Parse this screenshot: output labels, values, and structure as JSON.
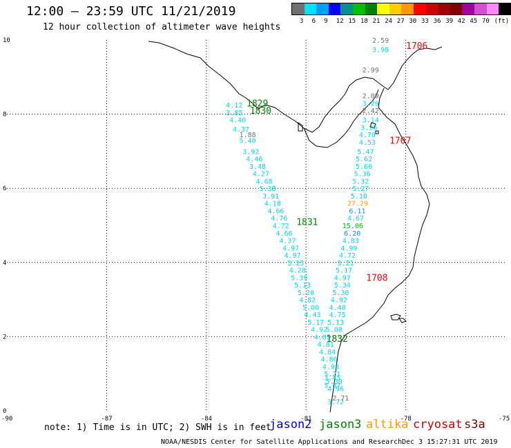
{
  "header": {
    "title": "12:00 – 23:59 UTC 11/21/2019",
    "subtitle": "12 hour collection of altimeter wave heights"
  },
  "legend": {
    "unit": "(ft)",
    "colors": [
      "#707070",
      "#00e0ff",
      "#00a0ff",
      "#0000ff",
      "#009090",
      "#00c000",
      "#008000",
      "#ffff00",
      "#ffcc00",
      "#ff9900",
      "#ff0000",
      "#d00000",
      "#a00000",
      "#800000",
      "#a000a0",
      "#d050d0",
      "#ff88ff",
      "#000000"
    ],
    "labels": [
      "3",
      "6",
      "9",
      "12",
      "15",
      "18",
      "21",
      "24",
      "27",
      "30",
      "33",
      "36",
      "39",
      "42",
      "45",
      "70"
    ]
  },
  "axes": {
    "x_ticks": [
      "-90",
      "-87",
      "-84",
      "-81",
      "-78",
      "-75"
    ],
    "y_ticks": [
      "10",
      "8",
      "6",
      "4",
      "2",
      "0"
    ],
    "x_range": [
      -90,
      -75
    ],
    "y_range": [
      0,
      10
    ]
  },
  "pass_labels": [
    {
      "text": "1706",
      "color": "#ff0000",
      "lon": -77.7,
      "lat": 9.85
    },
    {
      "text": "1829",
      "color": "#008000",
      "lon": -82.5,
      "lat": 8.3
    },
    {
      "text": "1830",
      "color": "#008000",
      "lon": -82.4,
      "lat": 8.1
    },
    {
      "text": "1707",
      "color": "#ff0000",
      "lon": -78.2,
      "lat": 7.3
    },
    {
      "text": "1831",
      "color": "#008000",
      "lon": -81.0,
      "lat": 5.1
    },
    {
      "text": "1708",
      "color": "#ff0000",
      "lon": -78.9,
      "lat": 3.6
    },
    {
      "text": "1832",
      "color": "#008000",
      "lon": -80.1,
      "lat": 1.95
    }
  ],
  "values": {
    "west_track": [
      {
        "text": "4.12",
        "color": "#00d8e8",
        "lon": -83.2,
        "lat": 8.25
      },
      {
        "text": "3.85",
        "color": "#00d8e8",
        "lon": -83.2,
        "lat": 8.05
      },
      {
        "text": "4.40",
        "color": "#00d8e8",
        "lon": -83.1,
        "lat": 7.85
      },
      {
        "text": "4.37",
        "color": "#00d8e8",
        "lon": -83.0,
        "lat": 7.6
      },
      {
        "text": "1.88",
        "color": "#707070",
        "lon": -82.8,
        "lat": 7.45
      },
      {
        "text": "5.40",
        "color": "#00d8e8",
        "lon": -82.8,
        "lat": 7.3
      },
      {
        "text": "3.92",
        "color": "#00d8e8",
        "lon": -82.7,
        "lat": 7.0
      },
      {
        "text": "4.46",
        "color": "#00d8e8",
        "lon": -82.6,
        "lat": 6.8
      },
      {
        "text": "3.48",
        "color": "#00d8e8",
        "lon": -82.5,
        "lat": 6.6
      },
      {
        "text": "4.27",
        "color": "#00d8e8",
        "lon": -82.4,
        "lat": 6.4
      },
      {
        "text": "4.68",
        "color": "#00d8e8",
        "lon": -82.3,
        "lat": 6.2
      },
      {
        "text": "5.38",
        "color": "#00d8e8",
        "lon": -82.2,
        "lat": 6.0
      },
      {
        "text": "3.91",
        "color": "#00d8e8",
        "lon": -82.1,
        "lat": 5.8
      },
      {
        "text": "4.18",
        "color": "#00d8e8",
        "lon": -82.05,
        "lat": 5.6
      },
      {
        "text": "4.66",
        "color": "#00d8e8",
        "lon": -81.95,
        "lat": 5.4
      },
      {
        "text": "4.76",
        "color": "#00d8e8",
        "lon": -81.85,
        "lat": 5.2
      },
      {
        "text": "4.72",
        "color": "#00d8e8",
        "lon": -81.8,
        "lat": 5.0
      },
      {
        "text": "4.66",
        "color": "#00d8e8",
        "lon": -81.7,
        "lat": 4.8
      },
      {
        "text": "4.37",
        "color": "#00d8e8",
        "lon": -81.6,
        "lat": 4.6
      },
      {
        "text": "4.97",
        "color": "#00d8e8",
        "lon": -81.5,
        "lat": 4.4
      },
      {
        "text": "4.97",
        "color": "#00d8e8",
        "lon": -81.45,
        "lat": 4.2
      },
      {
        "text": "5.23",
        "color": "#00d8e8",
        "lon": -81.35,
        "lat": 4.0
      },
      {
        "text": "4.28",
        "color": "#00d8e8",
        "lon": -81.3,
        "lat": 3.8
      },
      {
        "text": "5.39",
        "color": "#00d8e8",
        "lon": -81.25,
        "lat": 3.6
      },
      {
        "text": "5.13",
        "color": "#00d8e8",
        "lon": -81.15,
        "lat": 3.4
      },
      {
        "text": "5.20",
        "color": "#00d8e8",
        "lon": -81.05,
        "lat": 3.2
      },
      {
        "text": "4.82",
        "color": "#00d8e8",
        "lon": -81.0,
        "lat": 3.0
      },
      {
        "text": "5.00",
        "color": "#00d8e8",
        "lon": -80.9,
        "lat": 2.8
      },
      {
        "text": "4.43",
        "color": "#00d8e8",
        "lon": -80.85,
        "lat": 2.6
      },
      {
        "text": "5.17",
        "color": "#00d8e8",
        "lon": -80.75,
        "lat": 2.4
      },
      {
        "text": "4.92",
        "color": "#00d8e8",
        "lon": -80.65,
        "lat": 2.2
      },
      {
        "text": "4.85",
        "color": "#00d8e8",
        "lon": -80.55,
        "lat": 2.0
      },
      {
        "text": "4.81",
        "color": "#00d8e8",
        "lon": -80.45,
        "lat": 1.8
      },
      {
        "text": "4.84",
        "color": "#00d8e8",
        "lon": -80.4,
        "lat": 1.6
      },
      {
        "text": "4.86",
        "color": "#00d8e8",
        "lon": -80.35,
        "lat": 1.4
      },
      {
        "text": "4.98",
        "color": "#00d8e8",
        "lon": -80.3,
        "lat": 1.2
      },
      {
        "text": "5.21",
        "color": "#00d8e8",
        "lon": -80.25,
        "lat": 1.0
      },
      {
        "text": "5.30",
        "color": "#00d8e8",
        "lon": -80.2,
        "lat": 0.8
      },
      {
        "text": "4.96",
        "color": "#00d8e8",
        "lon": -80.15,
        "lat": 0.6
      },
      {
        "text": "3.72",
        "color": "#00d8e8",
        "lon": -80.15,
        "lat": 0.25
      }
    ],
    "east_track": [
      {
        "text": "2.59",
        "color": "#707070",
        "lon": -78.8,
        "lat": 10.0
      },
      {
        "text": "3.98",
        "color": "#00d8e8",
        "lon": -78.8,
        "lat": 9.75
      },
      {
        "text": "2.99",
        "color": "#707070",
        "lon": -79.1,
        "lat": 9.2
      },
      {
        "text": "2.09",
        "color": "#707070",
        "lon": -79.1,
        "lat": 8.5
      },
      {
        "text": "3.29",
        "color": "#00d8e8",
        "lon": -79.1,
        "lat": 8.3
      },
      {
        "text": "2.42",
        "color": "#707070",
        "lon": -79.1,
        "lat": 8.1
      },
      {
        "text": "3.14",
        "color": "#00d8e8",
        "lon": -79.1,
        "lat": 7.85
      },
      {
        "text": "3.26",
        "color": "#00d8e8",
        "lon": -79.15,
        "lat": 7.65
      },
      {
        "text": "4.70",
        "color": "#00d8e8",
        "lon": -79.2,
        "lat": 7.45
      },
      {
        "text": "4.53",
        "color": "#00d8e8",
        "lon": -79.2,
        "lat": 7.25
      },
      {
        "text": "5.47",
        "color": "#00d8e8",
        "lon": -79.25,
        "lat": 7.0
      },
      {
        "text": "5.62",
        "color": "#00d8e8",
        "lon": -79.3,
        "lat": 6.8
      },
      {
        "text": "5.60",
        "color": "#00d8e8",
        "lon": -79.3,
        "lat": 6.6
      },
      {
        "text": "5.36",
        "color": "#00d8e8",
        "lon": -79.35,
        "lat": 6.4
      },
      {
        "text": "5.32",
        "color": "#00d8e8",
        "lon": -79.4,
        "lat": 6.2
      },
      {
        "text": "5.27",
        "color": "#00d8e8",
        "lon": -79.4,
        "lat": 6.0
      },
      {
        "text": "5.10",
        "color": "#00d8e8",
        "lon": -79.45,
        "lat": 5.8
      },
      {
        "text": "27.29",
        "color": "#ff9900",
        "lon": -79.55,
        "lat": 5.6
      },
      {
        "text": "6.11",
        "color": "#0090ff",
        "lon": -79.5,
        "lat": 5.4
      },
      {
        "text": "4.67",
        "color": "#00d8e8",
        "lon": -79.55,
        "lat": 5.2
      },
      {
        "text": "15.06",
        "color": "#00c000",
        "lon": -79.7,
        "lat": 5.0
      },
      {
        "text": "6.20",
        "color": "#0090ff",
        "lon": -79.65,
        "lat": 4.8
      },
      {
        "text": "4.83",
        "color": "#00d8e8",
        "lon": -79.7,
        "lat": 4.6
      },
      {
        "text": "4.99",
        "color": "#00d8e8",
        "lon": -79.75,
        "lat": 4.4
      },
      {
        "text": "4.72",
        "color": "#00d8e8",
        "lon": -79.8,
        "lat": 4.2
      },
      {
        "text": "3.21",
        "color": "#00d8e8",
        "lon": -79.85,
        "lat": 4.0
      },
      {
        "text": "5.17",
        "color": "#00d8e8",
        "lon": -79.9,
        "lat": 3.8
      },
      {
        "text": "4.97",
        "color": "#00d8e8",
        "lon": -79.95,
        "lat": 3.6
      },
      {
        "text": "5.34",
        "color": "#00d8e8",
        "lon": -79.95,
        "lat": 3.4
      },
      {
        "text": "5.30",
        "color": "#00d8e8",
        "lon": -80.0,
        "lat": 3.2
      },
      {
        "text": "4.92",
        "color": "#00d8e8",
        "lon": -80.05,
        "lat": 3.0
      },
      {
        "text": "4.48",
        "color": "#00d8e8",
        "lon": -80.1,
        "lat": 2.8
      },
      {
        "text": "4.75",
        "color": "#00d8e8",
        "lon": -80.1,
        "lat": 2.6
      },
      {
        "text": "5.13",
        "color": "#00d8e8",
        "lon": -80.15,
        "lat": 2.4
      },
      {
        "text": "5.08",
        "color": "#00d8e8",
        "lon": -80.2,
        "lat": 2.2
      },
      {
        "text": "3.45",
        "color": "#00d8e8",
        "lon": -80.25,
        "lat": 0.9
      },
      {
        "text": "5.37",
        "color": "#00d8e8",
        "lon": -80.25,
        "lat": 0.7
      },
      {
        "text": "2.71",
        "color": "#707070",
        "lon": -80.0,
        "lat": 0.35
      }
    ]
  },
  "footer": {
    "note": "note: 1) Time is in UTC; 2) SWH is in feet",
    "satellites": [
      {
        "name": "jason2",
        "color": "#0000cc"
      },
      {
        "name": "jason3",
        "color": "#008000"
      },
      {
        "name": "altika",
        "color": "#ff9900"
      },
      {
        "name": "cryosat",
        "color": "#cc0000"
      },
      {
        "name": "s3a",
        "color": "#800000"
      }
    ],
    "credit": "NOAA/NESDIS Center for Satellite Applications and Research",
    "date": "Dec  3 15:27:31 UTC 2019"
  }
}
